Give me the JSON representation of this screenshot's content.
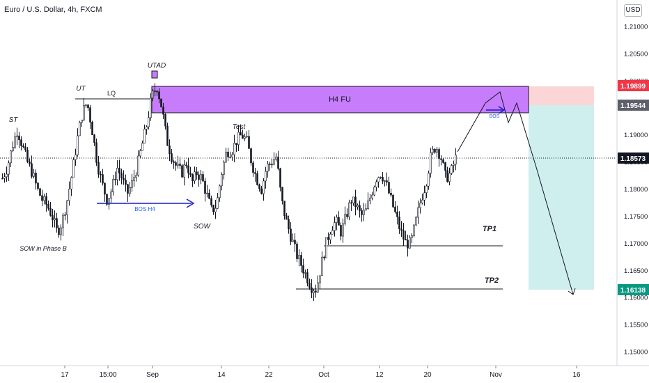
{
  "header": {
    "title": "Euro / U.S. Dollar, 4h, FXCM",
    "currency_button": "USD"
  },
  "price_axis": {
    "ticks": [
      "1.21000",
      "1.20500",
      "1.20000",
      "1.19500",
      "1.19000",
      "1.18500",
      "1.18000",
      "1.17500",
      "1.17000",
      "1.16500",
      "1.16000",
      "1.15500",
      "1.15000"
    ],
    "tag_stop": "1.19899",
    "tag_entry": "1.19544",
    "tag_last": "1.18573",
    "tag_target": "1.16138",
    "tag_colors": {
      "stop": "#f23645",
      "entry": "#5d606b",
      "last": "#131722",
      "target": "#089981"
    }
  },
  "time_axis": {
    "labels": [
      "17",
      "15:00",
      "Sep",
      "14",
      "22",
      "Oct",
      "12",
      "20",
      "Nov",
      "16"
    ]
  },
  "annotations": {
    "st": "ST",
    "ut": "UT",
    "lq": "LQ",
    "utad": "UTAD",
    "sow_phase_b": "SOW in Phase B",
    "bos_h4": "BOS H4",
    "sow": "SOW",
    "test": "Test",
    "zone": "H4 FU",
    "bos": "BOS",
    "tp1": "TP1",
    "tp2": "TP2"
  },
  "colors": {
    "zone": "#c77dfb",
    "bos_arrow": "#1a1acc",
    "stop_zone": "#fcd6d6",
    "target_zone": "#cfeeee",
    "candle": "#131722"
  },
  "chart_data": {
    "type": "candlestick",
    "symbol": "EUR/USD",
    "timeframe": "4h",
    "ylim": [
      1.1475,
      1.2125
    ],
    "x_labels": [
      "17",
      "15:00",
      "Sep",
      "14",
      "22",
      "Oct",
      "12",
      "20",
      "Nov",
      "16"
    ],
    "key_levels": {
      "last_price": 1.18573,
      "entry": 1.19544,
      "stop": 1.19899,
      "target": 1.16138,
      "tp1": 1.1693,
      "tp2": 1.1615,
      "zone_high": 1.199,
      "zone_low": 1.1935
    },
    "approx_close_path": [
      1.182,
      1.184,
      1.188,
      1.191,
      1.188,
      1.185,
      1.183,
      1.18,
      1.178,
      1.177,
      1.175,
      1.172,
      1.174,
      1.178,
      1.183,
      1.189,
      1.194,
      1.196,
      1.191,
      1.185,
      1.181,
      1.178,
      1.18,
      1.184,
      1.182,
      1.179,
      1.181,
      1.184,
      1.188,
      1.192,
      1.197,
      1.199,
      1.195,
      1.189,
      1.186,
      1.184,
      1.183,
      1.185,
      1.181,
      1.183,
      1.182,
      1.179,
      1.176,
      1.177,
      1.183,
      1.187,
      1.187,
      1.189,
      1.19,
      1.189,
      1.185,
      1.182,
      1.18,
      1.184,
      1.185,
      1.186,
      1.178,
      1.174,
      1.171,
      1.168,
      1.166,
      1.164,
      1.162,
      1.1615,
      1.166,
      1.17,
      1.173,
      1.174,
      1.172,
      1.175,
      1.178,
      1.177,
      1.175,
      1.176,
      1.179,
      1.182,
      1.183,
      1.181,
      1.178,
      1.175,
      1.172,
      1.17,
      1.17,
      1.174,
      1.178,
      1.181,
      1.186,
      1.188,
      1.186,
      1.182,
      1.183,
      1.1857
    ]
  }
}
